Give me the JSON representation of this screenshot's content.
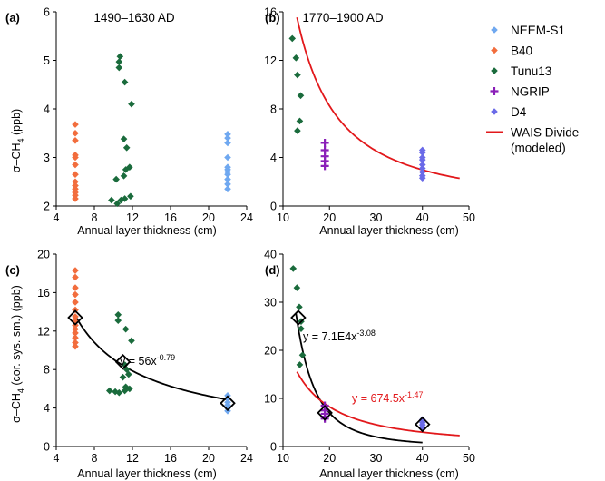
{
  "chart_data": [
    {
      "panel_label": "(a)",
      "title": "1490–1630 AD",
      "type": "scatter",
      "xlabel": "Annual layer thickness (cm)",
      "ylabel_main": "σ–CH",
      "ylabel_sub": "4",
      "ylabel_tail": " (ppb)",
      "xlim": [
        4,
        24
      ],
      "ylim": [
        2,
        6
      ],
      "xticks": [
        "4",
        "8",
        "12",
        "16",
        "20",
        "24"
      ],
      "yticks": [
        "2",
        "3",
        "4",
        "5",
        "6"
      ],
      "series": [
        {
          "name": "B40",
          "color": "#f26d3d",
          "marker": "diamond",
          "points": [
            [
              6,
              3.68
            ],
            [
              6,
              3.5
            ],
            [
              6,
              3.35
            ],
            [
              6,
              3.05
            ],
            [
              6,
              3.0
            ],
            [
              6,
              2.85
            ],
            [
              6,
              2.65
            ],
            [
              6,
              2.5
            ],
            [
              6,
              2.42
            ],
            [
              6,
              2.35
            ],
            [
              6,
              2.28
            ],
            [
              6,
              2.22
            ],
            [
              6,
              2.15
            ]
          ]
        },
        {
          "name": "Tunu13",
          "color": "#1a6b3c",
          "marker": "diamond",
          "points": [
            [
              10.7,
              5.08
            ],
            [
              10.6,
              4.97
            ],
            [
              10.6,
              4.85
            ],
            [
              11.2,
              4.55
            ],
            [
              11.9,
              4.1
            ],
            [
              11.1,
              3.38
            ],
            [
              11.4,
              3.2
            ],
            [
              11.7,
              2.8
            ],
            [
              11.3,
              2.75
            ],
            [
              11.1,
              2.62
            ],
            [
              10.3,
              2.55
            ],
            [
              11.8,
              2.2
            ],
            [
              11.2,
              2.15
            ],
            [
              10.8,
              2.12
            ],
            [
              9.8,
              2.12
            ],
            [
              10.4,
              2.05
            ]
          ]
        },
        {
          "name": "NEEM-S1",
          "color": "#6fa8f0",
          "marker": "diamond",
          "points": [
            [
              22,
              3.48
            ],
            [
              22,
              3.4
            ],
            [
              22,
              3.3
            ],
            [
              22,
              3.0
            ],
            [
              22,
              2.8
            ],
            [
              22,
              2.75
            ],
            [
              22,
              2.7
            ],
            [
              22,
              2.65
            ],
            [
              22,
              2.55
            ],
            [
              22,
              2.45
            ],
            [
              22,
              2.35
            ]
          ]
        }
      ]
    },
    {
      "panel_label": "(b)",
      "title": "1770–1900 AD",
      "type": "scatter",
      "xlabel": "Annual layer thickness (cm)",
      "xlim": [
        10,
        50
      ],
      "ylim": [
        0,
        16
      ],
      "xticks": [
        "10",
        "20",
        "30",
        "40",
        "50"
      ],
      "yticks": [
        "0",
        "4",
        "8",
        "12",
        "16"
      ],
      "series": [
        {
          "name": "Tunu13",
          "color": "#1a6b3c",
          "marker": "diamond",
          "points": [
            [
              12,
              13.8
            ],
            [
              12.8,
              12.2
            ],
            [
              13.1,
              10.8
            ],
            [
              13.8,
              9.1
            ],
            [
              13.6,
              7.0
            ],
            [
              13.1,
              6.2
            ]
          ]
        },
        {
          "name": "NGRIP",
          "color": "#8a1fb8",
          "marker": "plus",
          "points": [
            [
              19,
              5.2
            ],
            [
              19,
              4.6
            ],
            [
              19,
              4.1
            ],
            [
              19,
              3.7
            ],
            [
              19,
              3.3
            ]
          ]
        },
        {
          "name": "D4",
          "color": "#6a6ae8",
          "marker": "diamond",
          "points": [
            [
              40,
              4.6
            ],
            [
              40,
              4.4
            ],
            [
              40,
              4.0
            ],
            [
              40,
              3.8
            ],
            [
              40,
              3.4
            ],
            [
              40,
              3.1
            ],
            [
              40,
              2.8
            ],
            [
              40,
              2.5
            ],
            [
              40,
              2.3
            ]
          ]
        }
      ],
      "curves": [
        {
          "name": "WAIS Divide (modeled)",
          "color": "#e2181b",
          "coef": 674.5,
          "exponent": -1.47,
          "x_range": [
            13,
            48
          ]
        }
      ]
    },
    {
      "panel_label": "(c)",
      "type": "scatter",
      "xlabel": "Annual layer thickness (cm)",
      "ylabel_main": "σ–CH",
      "ylabel_sub": "4",
      "ylabel_tail": " (cor. sys. sm.) (ppb)",
      "xlim": [
        4,
        24
      ],
      "ylim": [
        0,
        20
      ],
      "xticks": [
        "4",
        "8",
        "12",
        "16",
        "20",
        "24"
      ],
      "yticks": [
        "0",
        "4",
        "8",
        "12",
        "16",
        "20"
      ],
      "series": [
        {
          "name": "B40",
          "color": "#f26d3d",
          "marker": "diamond",
          "points": [
            [
              6,
              18.3
            ],
            [
              6,
              17.6
            ],
            [
              6,
              16.5
            ],
            [
              6,
              15.8
            ],
            [
              6,
              15.0
            ],
            [
              6,
              14.2
            ],
            [
              6,
              13.5
            ],
            [
              6,
              13.0
            ],
            [
              6,
              12.6
            ],
            [
              6,
              12.2
            ],
            [
              6,
              11.8
            ],
            [
              6,
              11.3
            ],
            [
              6,
              10.8
            ],
            [
              6,
              10.4
            ]
          ]
        },
        {
          "name": "Tunu13",
          "color": "#1a6b3c",
          "marker": "diamond",
          "points": [
            [
              10.5,
              13.7
            ],
            [
              10.5,
              13.1
            ],
            [
              11.3,
              12.2
            ],
            [
              11.9,
              11.0
            ],
            [
              11.2,
              8.5
            ],
            [
              11.4,
              8.0
            ],
            [
              11.6,
              7.5
            ],
            [
              11.0,
              7.2
            ],
            [
              11.3,
              6.2
            ],
            [
              11.7,
              6.0
            ],
            [
              11.2,
              5.8
            ],
            [
              10.6,
              5.6
            ],
            [
              10.2,
              5.7
            ],
            [
              9.6,
              5.8
            ]
          ]
        },
        {
          "name": "NEEM-S1",
          "color": "#6fa8f0",
          "marker": "diamond",
          "points": [
            [
              22,
              5.3
            ],
            [
              22,
              5.0
            ],
            [
              22,
              4.6
            ],
            [
              22,
              4.3
            ],
            [
              22,
              4.0
            ],
            [
              22,
              3.7
            ]
          ]
        }
      ],
      "means": [
        [
          6,
          13.4
        ],
        [
          11,
          8.8
        ],
        [
          22,
          4.5
        ]
      ],
      "curves": [
        {
          "name": "fit",
          "color": "#000000",
          "coef": 56,
          "exponent": -0.79,
          "x_range": [
            6,
            22
          ]
        }
      ],
      "equation": {
        "base": "y = 56x",
        "exp": "-0.79"
      }
    },
    {
      "panel_label": "(d)",
      "type": "scatter",
      "xlabel": "Annual layer thickness (cm)",
      "xlim": [
        10,
        50
      ],
      "ylim": [
        0,
        40
      ],
      "xticks": [
        "10",
        "20",
        "30",
        "40",
        "50"
      ],
      "yticks": [
        "0",
        "10",
        "20",
        "30",
        "40"
      ],
      "series": [
        {
          "name": "Tunu13",
          "color": "#1a6b3c",
          "marker": "diamond",
          "points": [
            [
              12.2,
              37.0
            ],
            [
              13,
              33.0
            ],
            [
              13.5,
              29.0
            ],
            [
              13.9,
              26.0
            ],
            [
              13.9,
              24.5
            ],
            [
              14.2,
              19.0
            ],
            [
              13.6,
              17.0
            ]
          ]
        },
        {
          "name": "NGRIP",
          "color": "#8a1fb8",
          "marker": "plus",
          "points": [
            [
              19,
              8.5
            ],
            [
              19,
              7.5
            ],
            [
              19,
              6.8
            ],
            [
              19,
              6.2
            ],
            [
              19,
              5.8
            ]
          ]
        },
        {
          "name": "D4",
          "color": "#6a6ae8",
          "marker": "diamond",
          "points": [
            [
              40,
              5.6
            ],
            [
              40,
              5.0
            ],
            [
              40,
              4.5
            ],
            [
              40,
              4.0
            ],
            [
              40,
              3.7
            ]
          ]
        }
      ],
      "means": [
        [
          13.3,
          26.8
        ],
        [
          19,
          7.0
        ],
        [
          40,
          4.6
        ]
      ],
      "curves": [
        {
          "name": "fit",
          "color": "#000000",
          "coef": 71000,
          "exponent": -3.08,
          "x_range": [
            12.8,
            40
          ]
        },
        {
          "name": "WAIS Divide (modeled)",
          "color": "#e2181b",
          "coef": 674.5,
          "exponent": -1.47,
          "x_range": [
            13,
            48
          ]
        }
      ],
      "equations": [
        {
          "base": "y = 7.1E4x",
          "exp": "-3.08",
          "color": "#000000"
        },
        {
          "base": "y = 674.5x",
          "exp": "-1.47",
          "color": "#e2181b"
        }
      ]
    }
  ],
  "legend": [
    {
      "label": "NEEM-S1",
      "color": "#6fa8f0",
      "marker": "diamond"
    },
    {
      "label": "B40",
      "color": "#f26d3d",
      "marker": "diamond"
    },
    {
      "label": "Tunu13",
      "color": "#1a6b3c",
      "marker": "diamond"
    },
    {
      "label": "NGRIP",
      "color": "#8a1fb8",
      "marker": "plus"
    },
    {
      "label": "D4",
      "color": "#6a6ae8",
      "marker": "diamond"
    },
    {
      "label": "WAIS Divide",
      "label2": "(modeled)",
      "color": "#e2181b",
      "marker": "line"
    }
  ]
}
